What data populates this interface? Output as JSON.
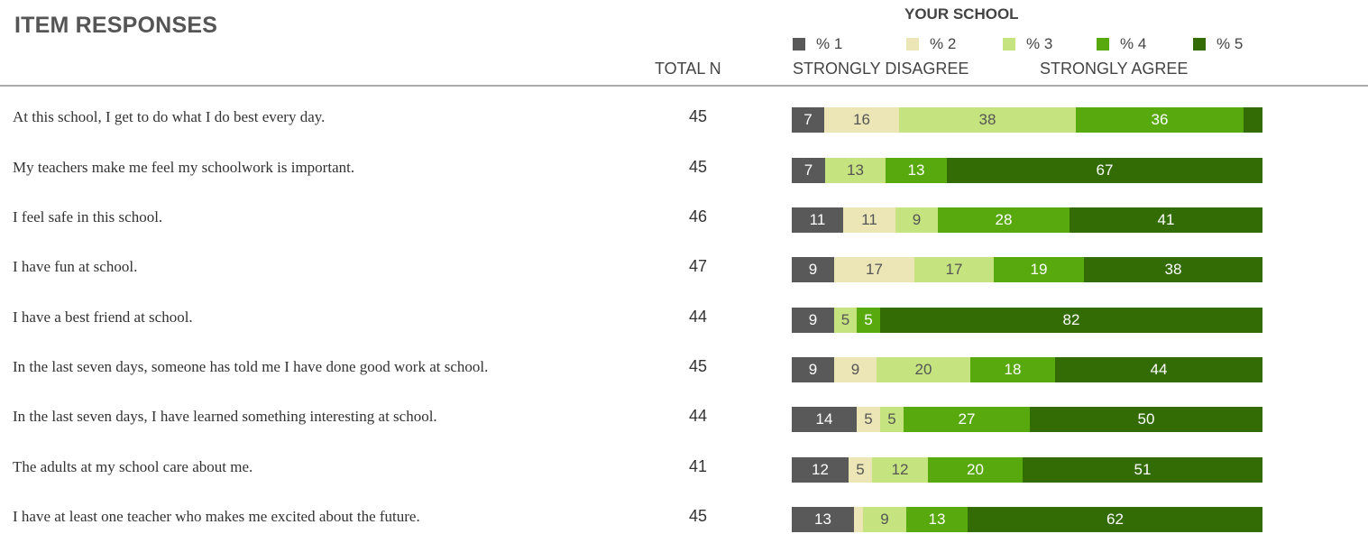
{
  "header": {
    "title": "ITEM RESPONSES",
    "group_label": "YOUR SCHOOL",
    "total_n_label": "TOTAL N",
    "scale_left_label": "STRONGLY DISAGREE",
    "scale_right_label": "STRONGLY AGREE"
  },
  "legend": [
    {
      "label": "% 1",
      "color": "#595959"
    },
    {
      "label": "% 2",
      "color": "#ece5b6"
    },
    {
      "label": "% 3",
      "color": "#c5e37e"
    },
    {
      "label": "% 4",
      "color": "#58a90d"
    },
    {
      "label": "% 5",
      "color": "#336b05"
    }
  ],
  "chart_data": {
    "type": "bar",
    "stacked": true,
    "orientation": "horizontal",
    "series_names": [
      "% 1",
      "% 2",
      "% 3",
      "% 4",
      "% 5"
    ],
    "series_colors": [
      "#595959",
      "#ece5b6",
      "#c5e37e",
      "#58a90d",
      "#336b05"
    ],
    "rows": [
      {
        "question": "At this school, I get to do what I do best every day.",
        "total_n": "45",
        "values": [
          7,
          16,
          38,
          36,
          4
        ],
        "labels": [
          "7",
          "16",
          "38",
          "36",
          ""
        ]
      },
      {
        "question": "My teachers make me feel my schoolwork is important.",
        "total_n": "45",
        "values": [
          7,
          0,
          13,
          13,
          67
        ],
        "labels": [
          "7",
          "",
          "13",
          "13",
          "67"
        ]
      },
      {
        "question": "I feel safe in this school.",
        "total_n": "46",
        "values": [
          11,
          11,
          9,
          28,
          41
        ],
        "labels": [
          "11",
          "11",
          "9",
          "28",
          "41"
        ]
      },
      {
        "question": "I have fun at school.",
        "total_n": "47",
        "values": [
          9,
          17,
          17,
          19,
          38
        ],
        "labels": [
          "9",
          "17",
          "17",
          "19",
          "38"
        ]
      },
      {
        "question": "I have a best friend at school.",
        "total_n": "44",
        "values": [
          9,
          0,
          5,
          5,
          82
        ],
        "labels": [
          "9",
          "",
          "5",
          "5",
          "82"
        ]
      },
      {
        "question": "In the last seven days, someone has told me I have done good work at school.",
        "total_n": "45",
        "values": [
          9,
          9,
          20,
          18,
          44
        ],
        "labels": [
          "9",
          "9",
          "20",
          "18",
          "44"
        ]
      },
      {
        "question": "In the last seven days, I have learned something interesting at school.",
        "total_n": "44",
        "values": [
          14,
          5,
          5,
          27,
          50
        ],
        "labels": [
          "14",
          "5",
          "5",
          "27",
          "50"
        ]
      },
      {
        "question": "The adults at my school care about me.",
        "total_n": "41",
        "values": [
          12,
          5,
          12,
          20,
          51
        ],
        "labels": [
          "12",
          "5",
          "12",
          "20",
          "51"
        ]
      },
      {
        "question": "I have at least one teacher who makes me excited about the future.",
        "total_n": "45",
        "values": [
          13,
          2,
          9,
          13,
          62
        ],
        "labels": [
          "13",
          "",
          "9",
          "13",
          "62"
        ]
      }
    ]
  }
}
